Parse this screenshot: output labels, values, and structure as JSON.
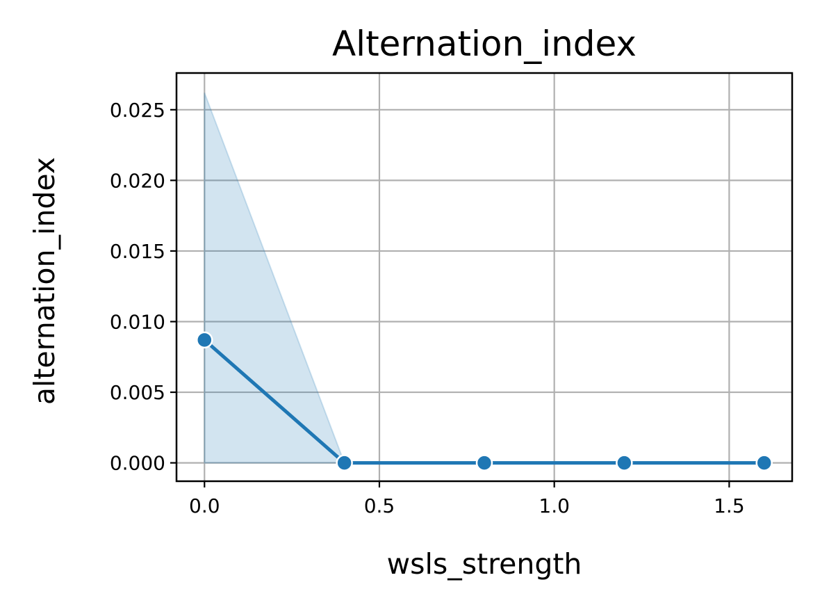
{
  "chart_data": {
    "type": "line",
    "title": "Alternation_index",
    "xlabel": "wsls_strength",
    "ylabel": "alternation_index",
    "xlim": [
      -0.08,
      1.68
    ],
    "ylim": [
      -0.0013,
      0.0276
    ],
    "x_ticks": [
      0.0,
      0.5,
      1.0,
      1.5
    ],
    "x_tick_labels": [
      "0.0",
      "0.5",
      "1.0",
      "1.5"
    ],
    "y_ticks": [
      0.0,
      0.005,
      0.01,
      0.015,
      0.02,
      0.025
    ],
    "y_tick_labels": [
      "0.000",
      "0.005",
      "0.010",
      "0.015",
      "0.020",
      "0.025"
    ],
    "grid": true,
    "legend": null,
    "series": [
      {
        "x": [
          0.0,
          0.4,
          0.8,
          1.2,
          1.6
        ],
        "y": [
          0.0087,
          0.0,
          0.0,
          0.0,
          0.0
        ],
        "ci_lower": [
          0.0,
          0.0,
          0.0,
          0.0,
          0.0
        ],
        "ci_upper": [
          0.0262,
          0.0,
          0.0,
          0.0,
          0.0
        ],
        "color": "#1f77b4",
        "band_color": "#1f77b4",
        "marker": "circle"
      }
    ]
  }
}
